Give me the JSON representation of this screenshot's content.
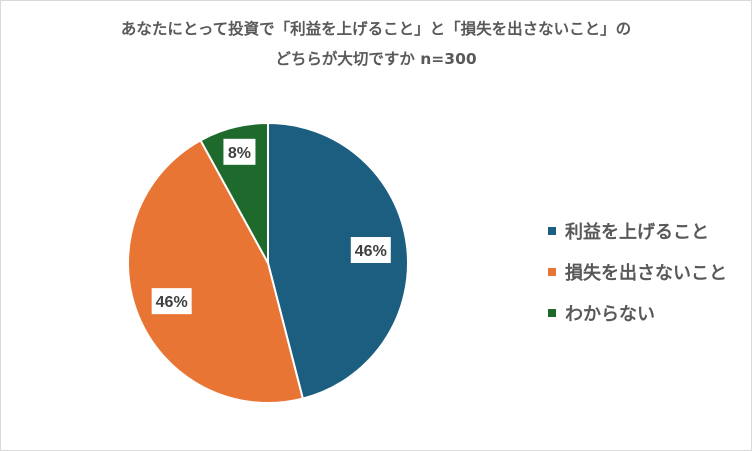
{
  "chart_data": {
    "type": "pie",
    "title_line1": "あなたにとって投資で「利益を上げること」と「損失を出さないこと」の",
    "title_line2": "どちらが大切ですか n=300",
    "slices": [
      {
        "label": "利益を上げること",
        "value": 46,
        "value_label": "46%",
        "color": "#1b5e80"
      },
      {
        "label": "損失を出さないこと",
        "value": 46,
        "value_label": "46%",
        "color": "#e97535"
      },
      {
        "label": "わからない",
        "value": 8,
        "value_label": "8%",
        "color": "#1e6a2c"
      }
    ],
    "legend_position": "right"
  }
}
